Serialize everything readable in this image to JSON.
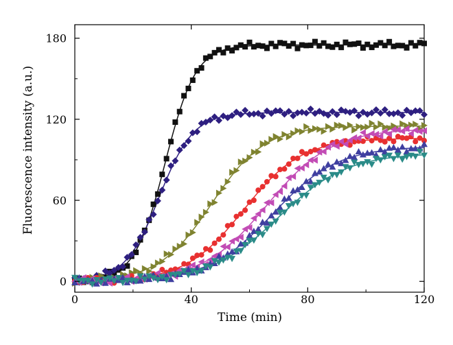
{
  "chart_data": {
    "type": "scatter",
    "xlabel": "Time (min)",
    "ylabel": "Fluorescence intensity (a.u.)",
    "xlim": [
      0,
      120
    ],
    "ylim": [
      -8,
      190
    ],
    "xticks": [
      0,
      40,
      80,
      120
    ],
    "yticks": [
      0,
      60,
      120,
      180
    ],
    "grid": false,
    "legend": "none",
    "series": [
      {
        "color": "#111111",
        "marker": "square",
        "plateau": 175,
        "midpoint": 31,
        "rate": 0.19
      },
      {
        "color": "#2e1f80",
        "marker": "diamond",
        "plateau": 125,
        "midpoint": 29,
        "rate": 0.17
      },
      {
        "color": "#7f8330",
        "marker": "triangle-right",
        "plateau": 115,
        "midpoint": 47,
        "rate": 0.11
      },
      {
        "color": "#e83030",
        "marker": "circle",
        "plateau": 106,
        "midpoint": 58,
        "rate": 0.1
      },
      {
        "color": "#c24cb5",
        "marker": "triangle-left",
        "plateau": 113,
        "midpoint": 66,
        "rate": 0.09
      },
      {
        "color": "#3f3fa0",
        "marker": "triangle-up",
        "plateau": 100,
        "midpoint": 68,
        "rate": 0.09
      },
      {
        "color": "#2a8b88",
        "marker": "triangle-down",
        "plateau": 95,
        "midpoint": 70,
        "rate": 0.085
      }
    ]
  }
}
